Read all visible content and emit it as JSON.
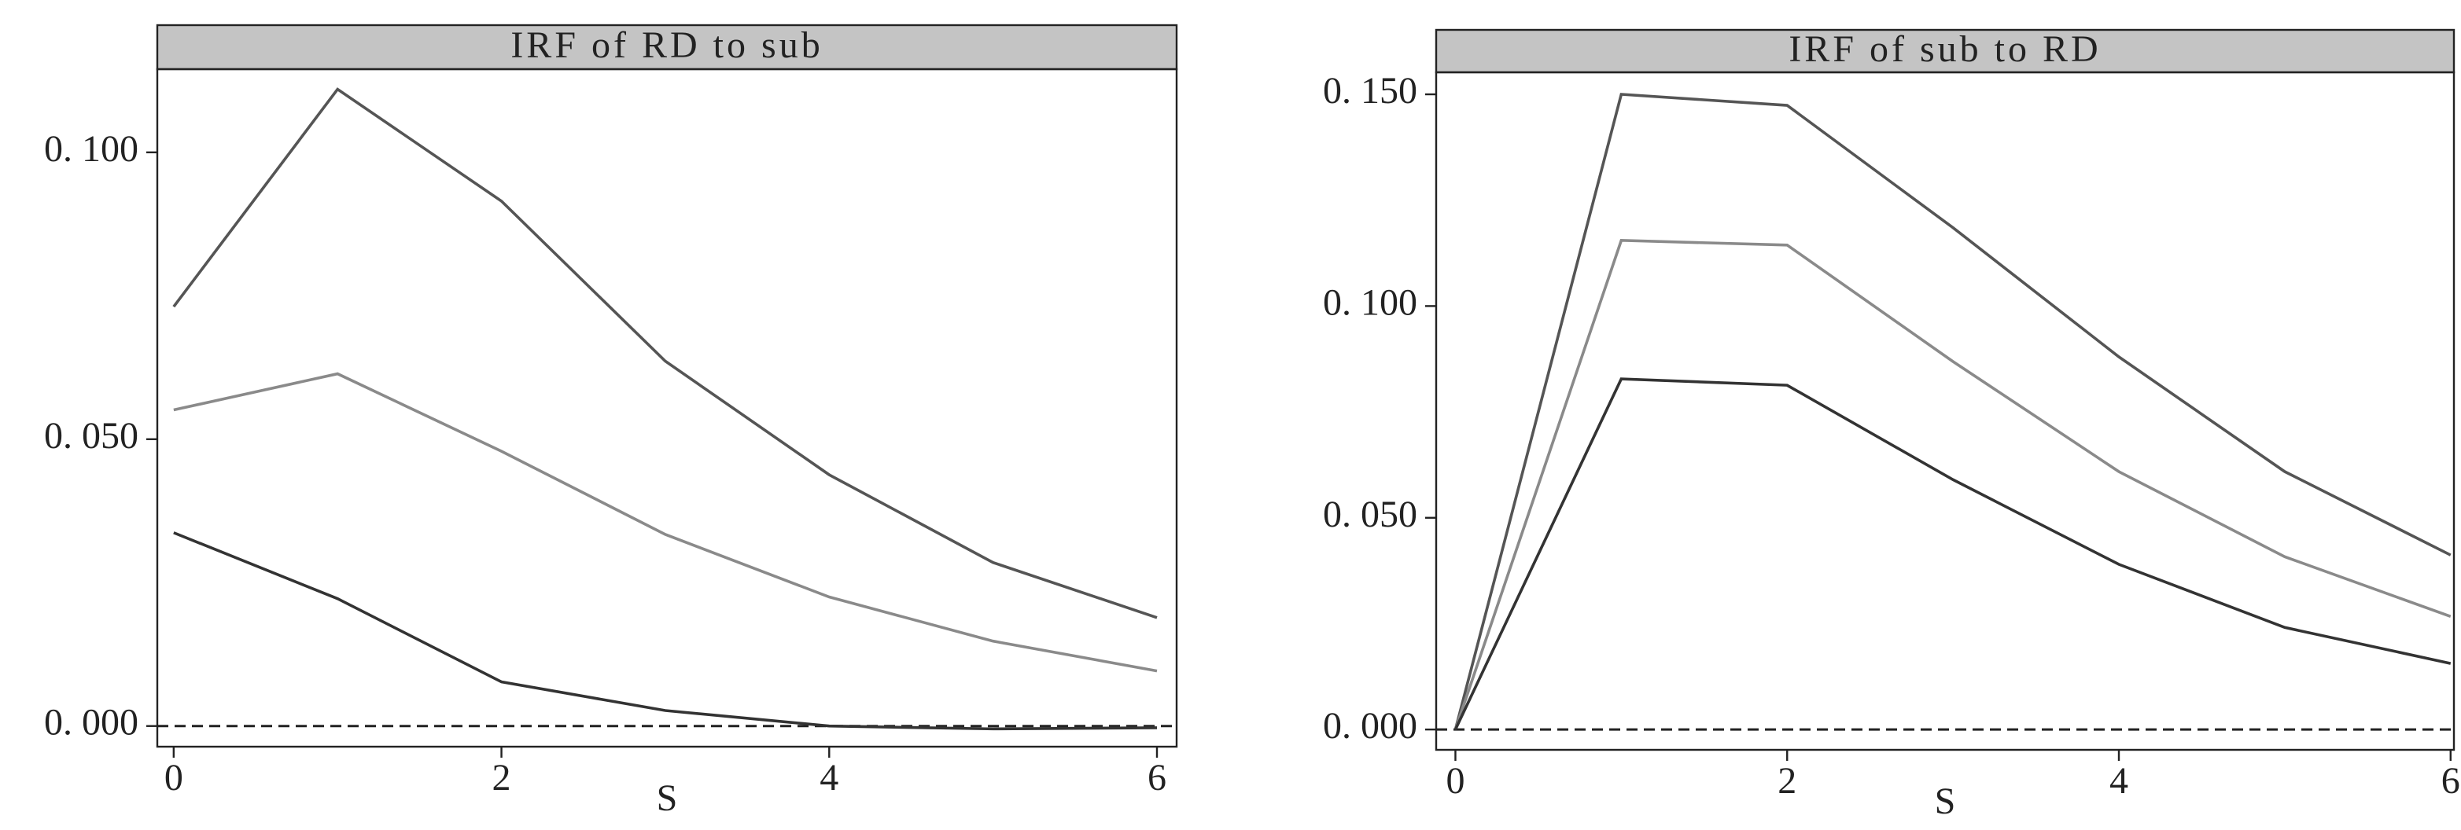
{
  "chart_data": [
    {
      "type": "line",
      "title": "IRF of RD to sub",
      "x_label": "S",
      "x": [
        0,
        1,
        2,
        3,
        4,
        5,
        6
      ],
      "series": [
        {
          "color": "#555555",
          "values": [
            0.0731,
            0.111,
            0.0915,
            0.0636,
            0.0438,
            0.0285,
            0.0189
          ]
        },
        {
          "color": "#8a8a8a",
          "values": [
            0.0551,
            0.0614,
            0.0479,
            0.0334,
            0.0225,
            0.0148,
            0.0096
          ]
        },
        {
          "color": "#333333",
          "values": [
            0.0337,
            0.0222,
            0.0077,
            0.0027,
            0.0,
            -0.0005,
            -0.0003
          ]
        }
      ],
      "xlim": [
        -0.1,
        6.12
      ],
      "xticks": [
        0,
        2,
        4,
        6
      ],
      "ylim": [
        -0.0036,
        0.1145
      ],
      "yticks": [
        {
          "value": 0,
          "label": "0. 000"
        },
        {
          "value": 0.05,
          "label": "0. 050"
        },
        {
          "value": 0.1,
          "label": "0. 100"
        }
      ],
      "reference_line": 0
    },
    {
      "type": "line",
      "title": "IRF of sub to RD",
      "x_label": "S",
      "x": [
        0,
        1,
        2,
        3,
        4,
        5,
        6
      ],
      "series": [
        {
          "color": "#555555",
          "values": [
            0,
            0.15,
            0.1474,
            0.1185,
            0.088,
            0.0609,
            0.0412
          ]
        },
        {
          "color": "#8a8a8a",
          "values": [
            0,
            0.1155,
            0.1144,
            0.0869,
            0.0609,
            0.0408,
            0.0267
          ]
        },
        {
          "color": "#333333",
          "values": [
            0,
            0.0828,
            0.0813,
            0.059,
            0.039,
            0.0241,
            0.0156
          ]
        }
      ],
      "xlim": [
        -0.116,
        6.02
      ],
      "xticks": [
        0,
        2,
        4,
        6
      ],
      "ylim": [
        -0.0048,
        0.1552
      ],
      "yticks": [
        {
          "value": 0,
          "label": "0. 000"
        },
        {
          "value": 0.05,
          "label": "0. 050"
        },
        {
          "value": 0.1,
          "label": "0. 100"
        },
        {
          "value": 0.15,
          "label": "0. 150"
        }
      ],
      "reference_line": 0
    }
  ]
}
